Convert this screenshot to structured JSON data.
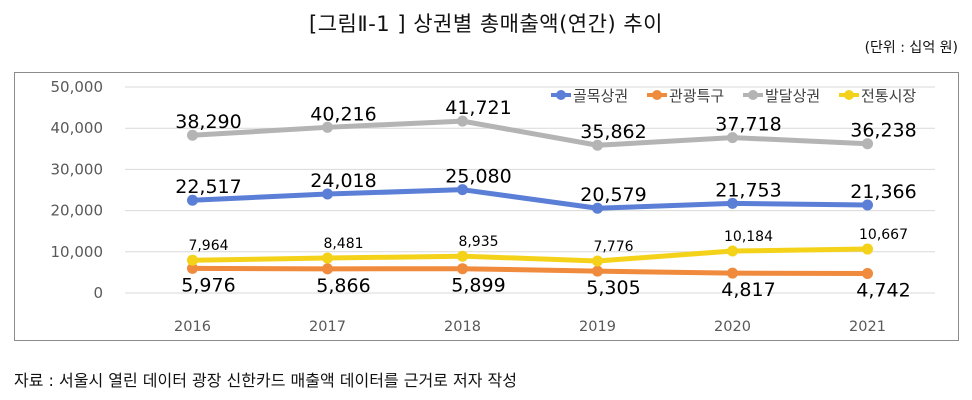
{
  "figure": {
    "title": "[그림Ⅱ-1 ] 상권별 총매출액(연간) 추이",
    "unit": "(단위 : 십억 원)",
    "source": "자료 : 서울시 열린 데이터 광장 신한카드 매출액 데이터를 근거로 저자 작성"
  },
  "chart_data": {
    "type": "line",
    "title": "[그림Ⅱ-1 ] 상권별 총매출액(연간) 추이",
    "xlabel": "",
    "ylabel": "",
    "categories": [
      "2016",
      "2017",
      "2018",
      "2019",
      "2020",
      "2021"
    ],
    "ylim": [
      0,
      50000
    ],
    "yticks": [
      0,
      10000,
      20000,
      30000,
      40000,
      50000
    ],
    "ytick_labels": [
      "0",
      "10,000",
      "20,000",
      "30,000",
      "40,000",
      "50,000"
    ],
    "grid": true,
    "legend_position": "top-right",
    "series": [
      {
        "name": "골목상권",
        "color": "#5b7fd6",
        "values": [
          22517,
          24018,
          25080,
          20579,
          21753,
          21366
        ],
        "labels": [
          "22,517",
          "24,018",
          "25,080",
          "20,579",
          "21,753",
          "21,366"
        ],
        "label_pos": "above",
        "label_size": "large"
      },
      {
        "name": "관광특구",
        "color": "#f08a3c",
        "values": [
          5976,
          5866,
          5899,
          5305,
          4817,
          4742
        ],
        "labels": [
          "5,976",
          "5,866",
          "5,899",
          "5,305",
          "4,817",
          "4,742"
        ],
        "label_pos": "below",
        "label_size": "large"
      },
      {
        "name": "발달상권",
        "color": "#b4b4b4",
        "values": [
          38290,
          40216,
          41721,
          35862,
          37718,
          36238
        ],
        "labels": [
          "38,290",
          "40,216",
          "41,721",
          "35,862",
          "37,718",
          "36,238"
        ],
        "label_pos": "above",
        "label_size": "large"
      },
      {
        "name": "전통시장",
        "color": "#f5d21a",
        "values": [
          7964,
          8481,
          8935,
          7776,
          10184,
          10667
        ],
        "labels": [
          "7,964",
          "8,481",
          "8,935",
          "7,776",
          "10,184",
          "10,667"
        ],
        "label_pos": "above",
        "label_size": "small"
      }
    ]
  }
}
